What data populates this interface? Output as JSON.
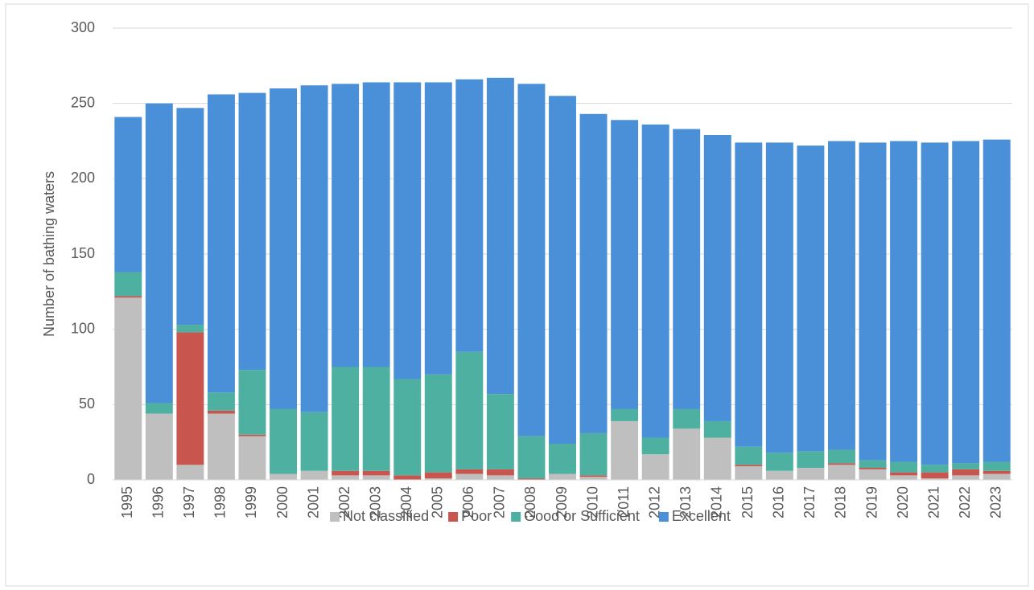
{
  "chart_data": {
    "type": "stacked-bar",
    "y_label": "Number of bathing waters",
    "categories": [
      "1995",
      "1996",
      "1997",
      "1998",
      "1999",
      "2000",
      "2001",
      "2002",
      "2003",
      "2004",
      "2005",
      "2006",
      "2007",
      "2008",
      "2009",
      "2010",
      "2011",
      "2012",
      "2013",
      "2014",
      "2015",
      "2016",
      "2017",
      "2018",
      "2019",
      "2020",
      "2021",
      "2022",
      "2023"
    ],
    "series": [
      {
        "name": "Not classified",
        "color": "#bfbfbf",
        "values": [
          121,
          44,
          10,
          44,
          29,
          4,
          6,
          3,
          3,
          0,
          1,
          4,
          3,
          0,
          4,
          2,
          39,
          17,
          34,
          28,
          9,
          6,
          8,
          10,
          7,
          3,
          1,
          3,
          4
        ]
      },
      {
        "name": "Poor",
        "color": "#c9564e",
        "values": [
          1,
          0,
          88,
          2,
          1,
          0,
          0,
          3,
          3,
          3,
          4,
          3,
          4,
          1,
          0,
          1,
          0,
          0,
          0,
          0,
          1,
          0,
          0,
          1,
          1,
          2,
          4,
          4,
          2
        ]
      },
      {
        "name": "Good or Sufficient",
        "color": "#4eb0a0",
        "values": [
          16,
          7,
          5,
          12,
          43,
          43,
          39,
          69,
          69,
          64,
          65,
          78,
          50,
          28,
          20,
          28,
          8,
          11,
          13,
          11,
          12,
          12,
          11,
          9,
          5,
          7,
          5,
          4,
          6
        ]
      },
      {
        "name": "Excellent",
        "color": "#4a90d9",
        "values": [
          103,
          199,
          144,
          198,
          184,
          213,
          217,
          188,
          189,
          197,
          194,
          181,
          210,
          234,
          231,
          212,
          192,
          208,
          186,
          190,
          202,
          206,
          203,
          205,
          211,
          213,
          214,
          214,
          214
        ]
      }
    ],
    "ylim": [
      0,
      300
    ],
    "yticks": [
      0,
      50,
      100,
      150,
      200,
      250,
      300
    ],
    "grid": true,
    "legend": "bottom"
  }
}
